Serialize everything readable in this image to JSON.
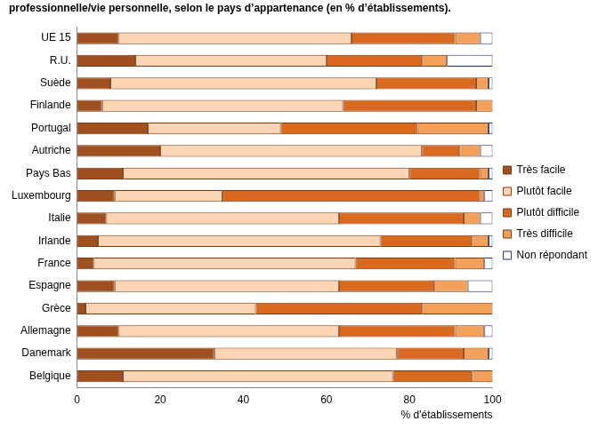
{
  "chart_data": {
    "type": "bar",
    "title": "professionnelle/vie personnelle, selon le pays d’appartenance (en % d’établissements).",
    "orientation": "horizontal",
    "stacked": true,
    "grid": false,
    "legend": "right",
    "xlabel": "% d'établissements",
    "xlim": [
      0,
      100
    ],
    "xticks": [
      0,
      20,
      40,
      60,
      80,
      100
    ],
    "categories": [
      "UE 15",
      "R.U.",
      "Suède",
      "Finlande",
      "Portugal",
      "Autriche",
      "Pays Bas",
      "Luxembourg",
      "Italie",
      "Irlande",
      "France",
      "Espagne",
      "Grèce",
      "Allemagne",
      "Danemark",
      "Belgique"
    ],
    "series": [
      {
        "name": "Très facile",
        "color": "#a0501e",
        "values": [
          10,
          14,
          8,
          6,
          17,
          20,
          11,
          9,
          7,
          5,
          4,
          9,
          2,
          10,
          33,
          11
        ]
      },
      {
        "name": "Plutôt facile",
        "color": "#fcd5b4",
        "values": [
          56,
          46,
          64,
          58,
          32,
          63,
          69,
          26,
          56,
          68,
          63,
          54,
          41,
          53,
          44,
          65
        ]
      },
      {
        "name": "Plutôt difficile",
        "color": "#d8691f",
        "values": [
          25,
          23,
          24,
          32,
          33,
          9,
          17,
          62,
          30,
          22,
          24,
          23,
          40,
          28,
          16,
          19
        ]
      },
      {
        "name": "Très difficile",
        "color": "#f2a05a",
        "values": [
          6,
          6,
          3,
          4,
          17,
          5,
          2,
          1,
          4,
          4,
          7,
          8,
          17,
          7,
          6,
          5
        ]
      },
      {
        "name": "Non répondant",
        "color": "#ffffff",
        "values": [
          3,
          11,
          1,
          0,
          1,
          3,
          1,
          2,
          3,
          1,
          2,
          6,
          0,
          2,
          1,
          0
        ]
      }
    ]
  }
}
